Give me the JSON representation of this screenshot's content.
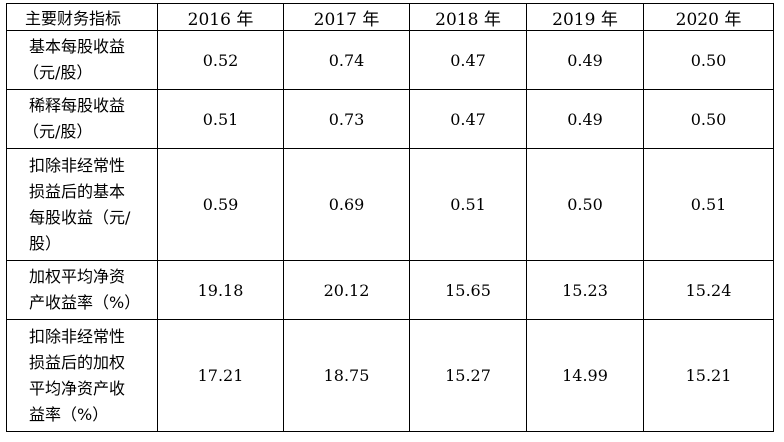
{
  "table": {
    "headers": [
      "主要财务指标",
      "2016 年",
      "2017 年",
      "2018 年",
      "2019 年",
      "2020 年"
    ],
    "rows": [
      {
        "label_lines": [
          "基本每股收益",
          "（元/股）"
        ],
        "values": [
          "0.52",
          "0.74",
          "0.47",
          "0.49",
          "0.50"
        ]
      },
      {
        "label_lines": [
          "稀释每股收益",
          "（元/股）"
        ],
        "values": [
          "0.51",
          "0.73",
          "0.47",
          "0.49",
          "0.50"
        ]
      },
      {
        "label_lines": [
          "扣除非经常性",
          "损益后的基本",
          "每股收益（元/",
          "股）"
        ],
        "values": [
          "0.59",
          "0.69",
          "0.51",
          "0.50",
          "0.51"
        ]
      },
      {
        "label_lines": [
          "加权平均净资",
          "产收益率（%）"
        ],
        "values": [
          "19.18",
          "20.12",
          "15.65",
          "15.23",
          "15.24"
        ]
      },
      {
        "label_lines": [
          "扣除非经常性",
          "损益后的加权",
          "平均净资产收",
          "益率（%）"
        ],
        "values": [
          "17.21",
          "18.75",
          "15.27",
          "14.99",
          "15.21"
        ]
      }
    ]
  }
}
